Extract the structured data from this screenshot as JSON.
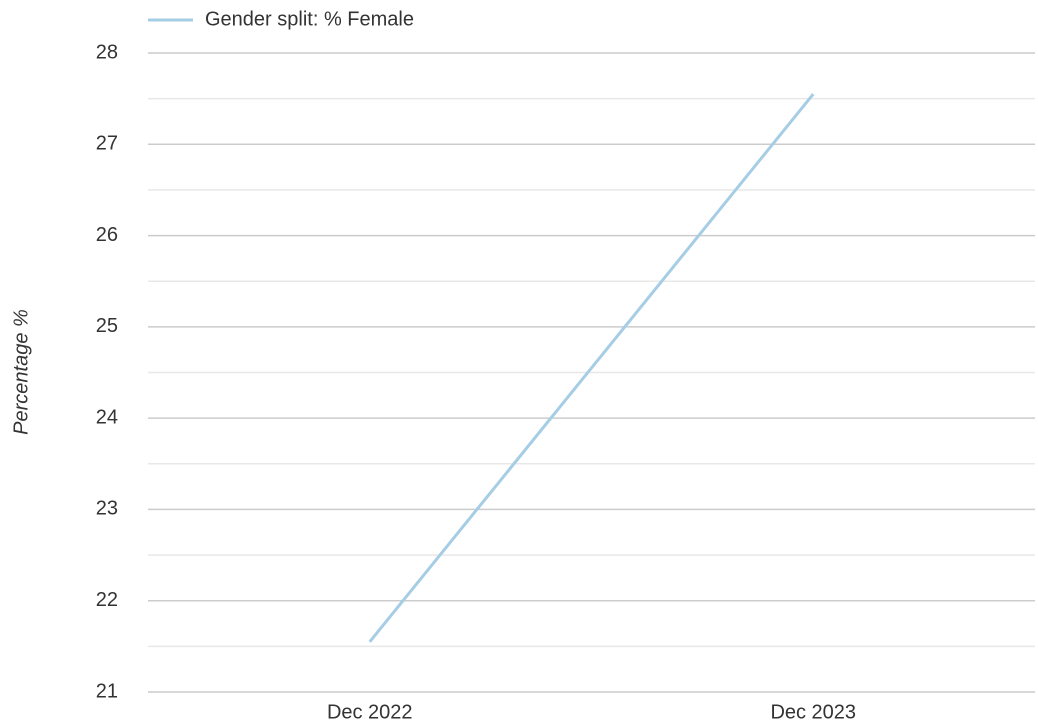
{
  "chart_data": {
    "type": "line",
    "y_label": "Percentage %",
    "categories": [
      "Dec 2022",
      "Dec 2023"
    ],
    "series": [
      {
        "name": "Gender split: % Female",
        "color": "#a6cde6",
        "values": [
          21.55,
          27.55
        ]
      }
    ],
    "ylim": [
      21,
      28
    ],
    "yticks": [
      21,
      22,
      23,
      24,
      25,
      26,
      27,
      28
    ],
    "minor_yticks": [
      21.5,
      22.5,
      23.5,
      24.5,
      25.5,
      26.5,
      27.5
    ],
    "grid": true,
    "legend": "top-left"
  }
}
